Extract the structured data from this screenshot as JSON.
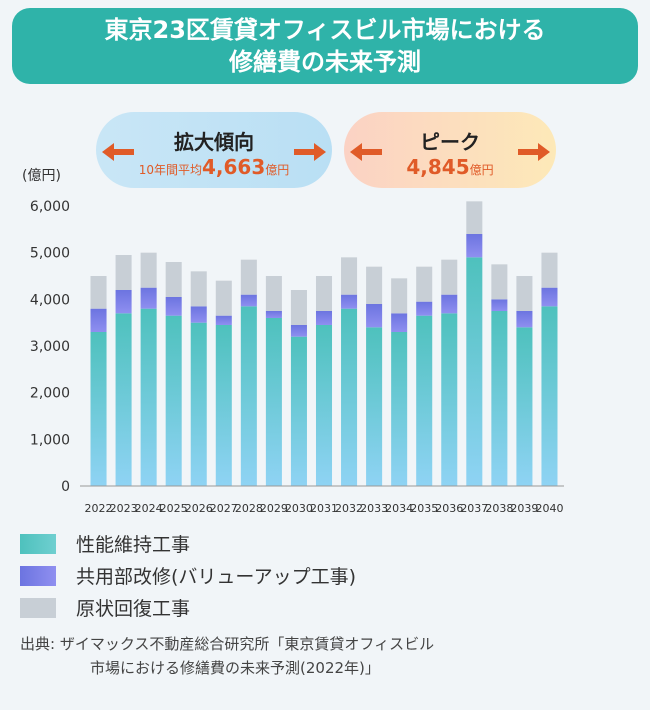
{
  "title": {
    "line1": "東京23区賃貸オフィスビル市場における",
    "line2": "修繕費の未来予測"
  },
  "callouts": {
    "expand": {
      "title": "拡大傾向",
      "prefix": "10年間平均",
      "value": "4,663",
      "unit": "億円"
    },
    "peak": {
      "title": "ピーク",
      "value": "4,845",
      "unit": "億円"
    }
  },
  "colors": {
    "maintenance": "#5cc6c6",
    "common": "#7b7fe6",
    "restoration": "#c8cfd6",
    "title_bg": "#2fb3a9",
    "accent": "#e05b28"
  },
  "chart_data": {
    "type": "bar",
    "stacked": true,
    "unit_label": "(億円)",
    "categories": [
      "2022",
      "2023",
      "2024",
      "2025",
      "2026",
      "2027",
      "2028",
      "2029",
      "2030",
      "2031",
      "2032",
      "2033",
      "2034",
      "2035",
      "2036",
      "2037",
      "2038",
      "2039",
      "2040"
    ],
    "series": [
      {
        "name": "性能維持工事",
        "values": [
          3300,
          3700,
          3800,
          3650,
          3500,
          3450,
          3850,
          3600,
          3200,
          3450,
          3800,
          3400,
          3300,
          3650,
          3700,
          4900,
          3750,
          3400,
          3850
        ]
      },
      {
        "name": "共用部改修(バリューアップ工事)",
        "values": [
          500,
          500,
          450,
          400,
          350,
          200,
          250,
          150,
          250,
          300,
          300,
          500,
          400,
          300,
          400,
          500,
          250,
          350,
          400
        ]
      },
      {
        "name": "原状回復工事",
        "values": [
          700,
          750,
          750,
          750,
          750,
          750,
          750,
          750,
          750,
          750,
          800,
          800,
          750,
          750,
          750,
          700,
          750,
          750,
          750
        ]
      }
    ],
    "ylim": [
      0,
      6000
    ],
    "yticks": [
      "0",
      "1,000",
      "2,000",
      "3,000",
      "4,000",
      "5,000",
      "6,000"
    ],
    "grid": false,
    "legend_position": "bottom-left"
  },
  "source": {
    "line1": "出典: ザイマックス不動産総合研究所「東京賃貸オフィスビル",
    "line2": "市場における修繕費の未来予測(2022年)」"
  }
}
